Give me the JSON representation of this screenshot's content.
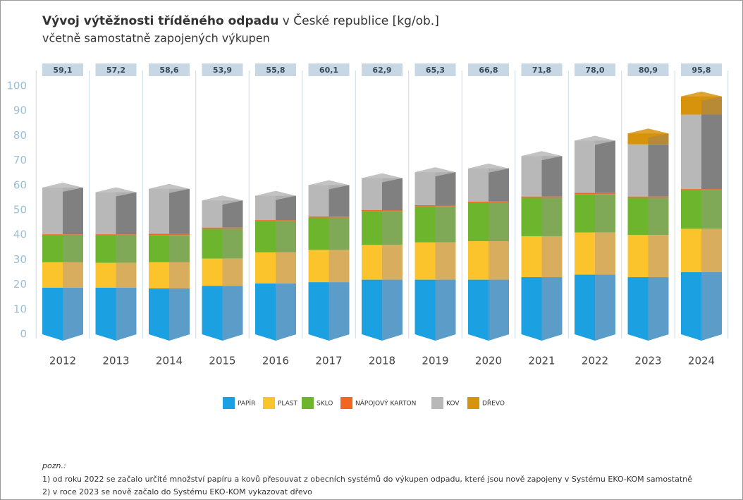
{
  "chart_data": {
    "type": "stacked_bar",
    "title": [
      "Vývoj výtěžnosti tříděného odpadu",
      "v České republice [kg/ob.]"
    ],
    "subtitle": "včetně samostatně zapojených výkupen",
    "categories": [
      "2012",
      "2013",
      "2014",
      "2015",
      "2016",
      "2017",
      "2018",
      "2019",
      "2020",
      "2021",
      "2022",
      "2023",
      "2024"
    ],
    "series": [
      {
        "name": "PAPÍR",
        "color": "#1ba1e2",
        "shade": "#5c9cc9",
        "values": [
          18.8,
          18.8,
          18.5,
          19.5,
          20.5,
          21,
          22,
          22,
          22,
          23,
          24,
          23,
          25
        ]
      },
      {
        "name": "PLAST",
        "color": "#fcc42c",
        "shade": "#d8ad5e",
        "values": [
          10.2,
          10,
          10.5,
          11,
          12.5,
          13,
          14,
          15,
          15.5,
          16.5,
          17,
          17,
          17.5
        ]
      },
      {
        "name": "SKLO",
        "color": "#6cb52d",
        "shade": "#80a957",
        "values": [
          10.8,
          11,
          11,
          12,
          12.5,
          13,
          13.5,
          14.5,
          15.5,
          15.5,
          15.5,
          15,
          15.5
        ]
      },
      {
        "name": "NÁPOJOVÝ KARTON",
        "color": "#f26522",
        "shade": "#d9703e",
        "values": [
          0.5,
          0.5,
          0.5,
          0.5,
          0.5,
          0.5,
          0.5,
          0.5,
          0.5,
          0.5,
          0.5,
          0.5,
          0.5
        ]
      },
      {
        "name": "KOV",
        "color": "#b8b8b8",
        "shade": "#808080",
        "values": [
          18.8,
          16.9,
          18.1,
          10.9,
          9.8,
          12.6,
          12.9,
          13.3,
          13.3,
          16.3,
          21,
          21,
          30
        ]
      },
      {
        "name": "DŘEVO",
        "color": "#d8930c",
        "shade": "#b98a35",
        "values": [
          null,
          null,
          null,
          null,
          null,
          null,
          null,
          null,
          null,
          null,
          null,
          4.4,
          7.3
        ]
      }
    ],
    "totals": {
      "values": [
        59.1,
        57.2,
        58.6,
        53.9,
        55.8,
        60.1,
        62.9,
        65.3,
        66.8,
        71.8,
        78.0,
        80.9,
        95.8
      ],
      "value_labels": [
        "59,1",
        "57,2",
        "58,6",
        "53,9",
        "55,8",
        "60,1",
        "62,9",
        "65,3",
        "66,8",
        "71,8",
        "78,0",
        "80,9",
        "95,8"
      ]
    },
    "ylim": [
      0,
      100
    ],
    "yticks": [
      0,
      10,
      20,
      30,
      40,
      50,
      60,
      70,
      80,
      90,
      100
    ],
    "notes": [
      "pozn.:",
      "1) od roku 2022 se začalo určité množství papíru a kovů přesouvat z obecních systémů do výkupen odpadu, které jsou nově zapojeny v Systému EKO-KOM samostatně",
      "2) v roce 2023 se nově začalo do Systému EKO-KOM vykazovat dřevo"
    ]
  }
}
